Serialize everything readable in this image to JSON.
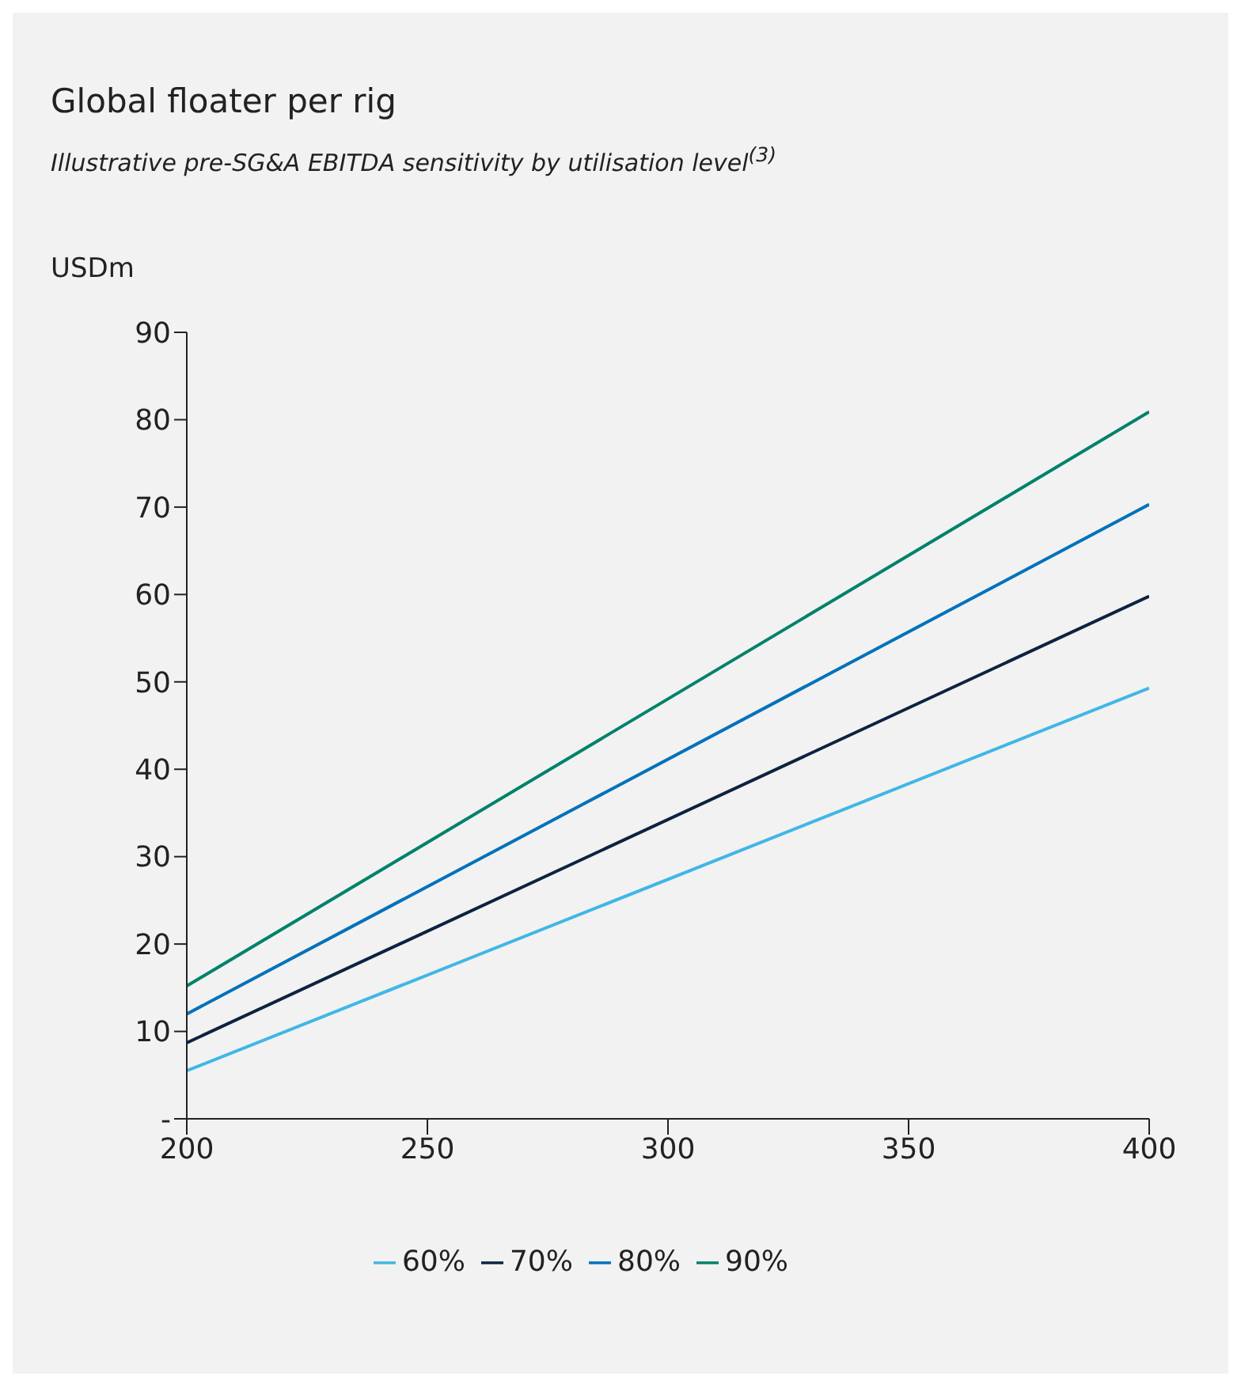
{
  "chart_data": {
    "type": "line",
    "title": "Global floater per rig",
    "subtitle": "Illustrative pre-SG&A EBITDA sensitivity by utilisation level$^{(3)}$",
    "ylabel": "USDm",
    "x": [
      200,
      400
    ],
    "series": [
      {
        "name": "60%",
        "color": "#41b6e6",
        "values": [
          5.5,
          49.3
        ]
      },
      {
        "name": "70%",
        "color": "#0c2340",
        "values": [
          8.7,
          59.8
        ]
      },
      {
        "name": "80%",
        "color": "#0072bb",
        "values": [
          12,
          70.3
        ]
      },
      {
        "name": "90%",
        "color": "#00826a",
        "values": [
          15.2,
          80.9
        ]
      }
    ],
    "xlim": [
      200,
      400
    ],
    "xticks": [
      200,
      250,
      300,
      350,
      400
    ],
    "ylim": [
      0,
      90
    ],
    "yticks": [
      {
        "value": 0,
        "label": "-"
      },
      10,
      20,
      30,
      40,
      50,
      60,
      70,
      80,
      90
    ],
    "grid": false,
    "legend": "bottom",
    "marker": "none",
    "line_style": "solid"
  }
}
